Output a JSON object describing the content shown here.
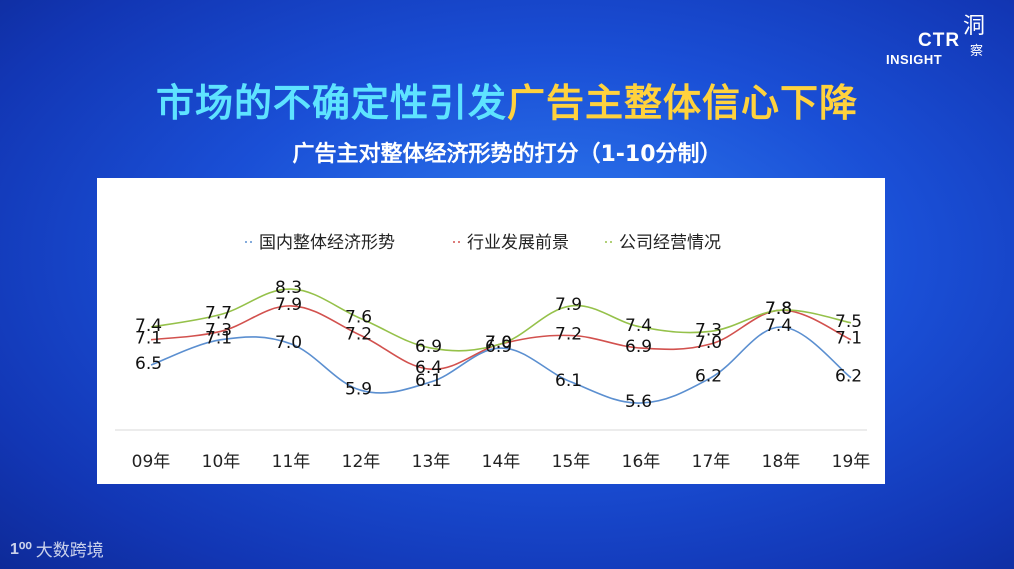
{
  "header": {
    "title_part1": "市场的不确定性引发",
    "title_part2": "广告主整体信心下降",
    "subtitle": "广告主对整体经济形势的打分（1-10分制）"
  },
  "logo": {
    "ctr": "CTR",
    "insight": "INSIGHT",
    "glyph1": "洞",
    "glyph2": "察"
  },
  "watermark": {
    "mark": "1⁰⁰",
    "text": "大数跨境"
  },
  "colors": {
    "series_blue": "#5b8fd0",
    "series_red": "#d2514e",
    "series_green": "#95c14a"
  },
  "chart_data": {
    "type": "line",
    "title": "广告主对整体经济形势的打分（1-10分制）",
    "categories": [
      "09年",
      "10年",
      "11年",
      "12年",
      "13年",
      "14年",
      "15年",
      "16年",
      "17年",
      "18年",
      "19年"
    ],
    "series": [
      {
        "name": "国内整体经济形势",
        "color": "#5b8fd0",
        "values": [
          6.5,
          7.1,
          7.0,
          5.9,
          6.1,
          6.9,
          6.1,
          5.6,
          6.2,
          7.4,
          6.2
        ]
      },
      {
        "name": "行业发展前景",
        "color": "#d2514e",
        "values": [
          7.1,
          7.3,
          7.9,
          7.2,
          6.4,
          7.0,
          7.2,
          6.9,
          7.0,
          7.8,
          7.1
        ]
      },
      {
        "name": "公司经营情况",
        "color": "#95c14a",
        "values": [
          7.4,
          7.7,
          8.3,
          7.6,
          6.9,
          7.0,
          7.9,
          7.4,
          7.3,
          7.8,
          7.5
        ]
      }
    ],
    "legend": "top",
    "grid": false,
    "smooth": true
  }
}
